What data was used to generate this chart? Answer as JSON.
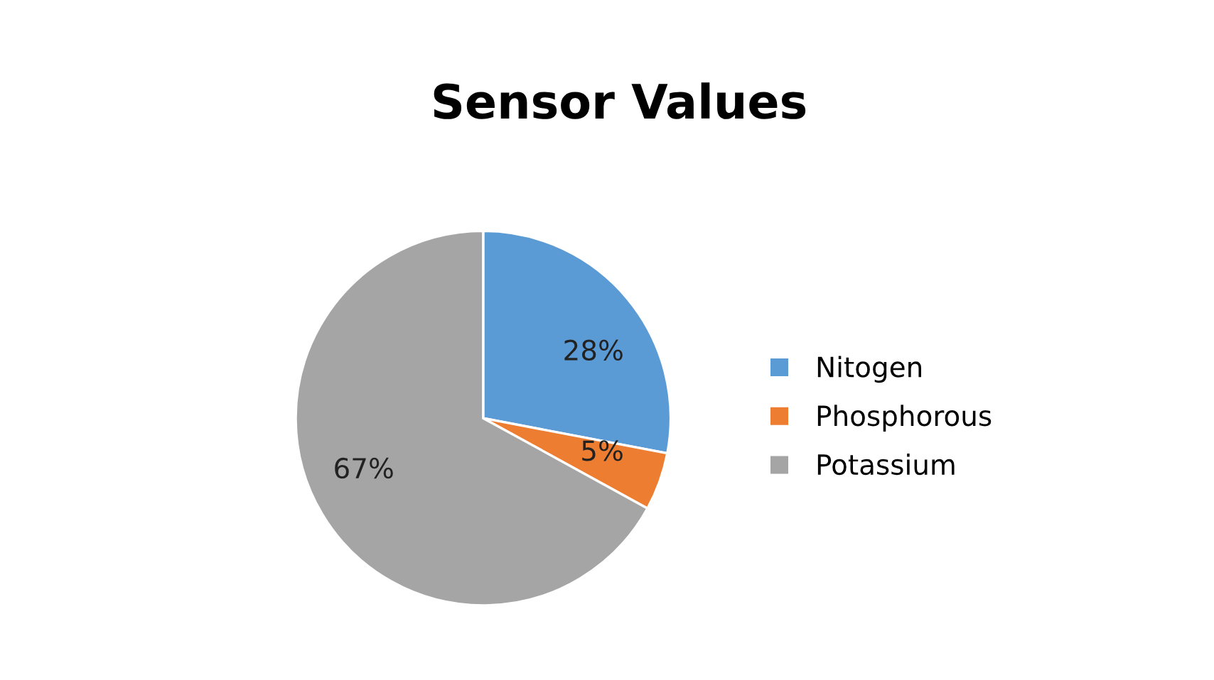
{
  "chart_data": {
    "type": "pie",
    "title": "Sensor Values",
    "categories": [
      "Nitogen",
      "Phosphorous",
      "Potassium"
    ],
    "values": [
      28,
      5,
      67
    ],
    "colors": [
      "#5b9bd5",
      "#ed7d31",
      "#a5a5a5"
    ],
    "value_labels": [
      "28%",
      "5%",
      "67%"
    ],
    "legend": "right"
  }
}
